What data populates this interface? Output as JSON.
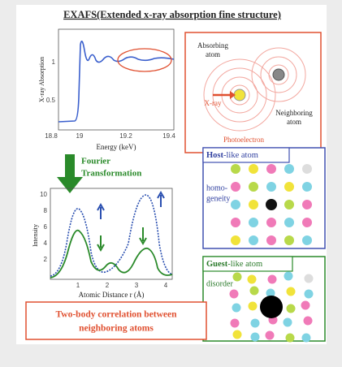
{
  "title": "EXAFS(Extended x-ray absorption fine structure)",
  "absorption_plot": {
    "y_label": "X-ray Absorption",
    "x_label": "Energy (keV)",
    "y_ticks": [
      "1",
      "0.5"
    ],
    "x_ticks": [
      "18.8",
      "19",
      "19.2",
      "19.4"
    ]
  },
  "fourier": {
    "lines": [
      "Fourier",
      "Transformation"
    ]
  },
  "distance_plot": {
    "y_label": "Intensity",
    "x_label": "Atomic Distance r (Å)",
    "y_ticks": [
      "10",
      "8",
      "6",
      "4",
      "2"
    ],
    "x_ticks": [
      "1",
      "2",
      "3",
      "4"
    ]
  },
  "scattering": {
    "absorbing": [
      "Absorbing",
      "atom"
    ],
    "xray": "X-ray",
    "neighboring": [
      "Neighboring",
      "atom"
    ],
    "photoelectron": "Photoelectron"
  },
  "host": {
    "label_bold": "Host",
    "label_rest": "-like atom",
    "description": [
      "homo-",
      "geneity"
    ]
  },
  "guest": {
    "label_bold": "Guest",
    "label_rest": "-like atom",
    "description": "disorder"
  },
  "summary": [
    "Two-body correlation between",
    "neighboring atoms"
  ]
}
